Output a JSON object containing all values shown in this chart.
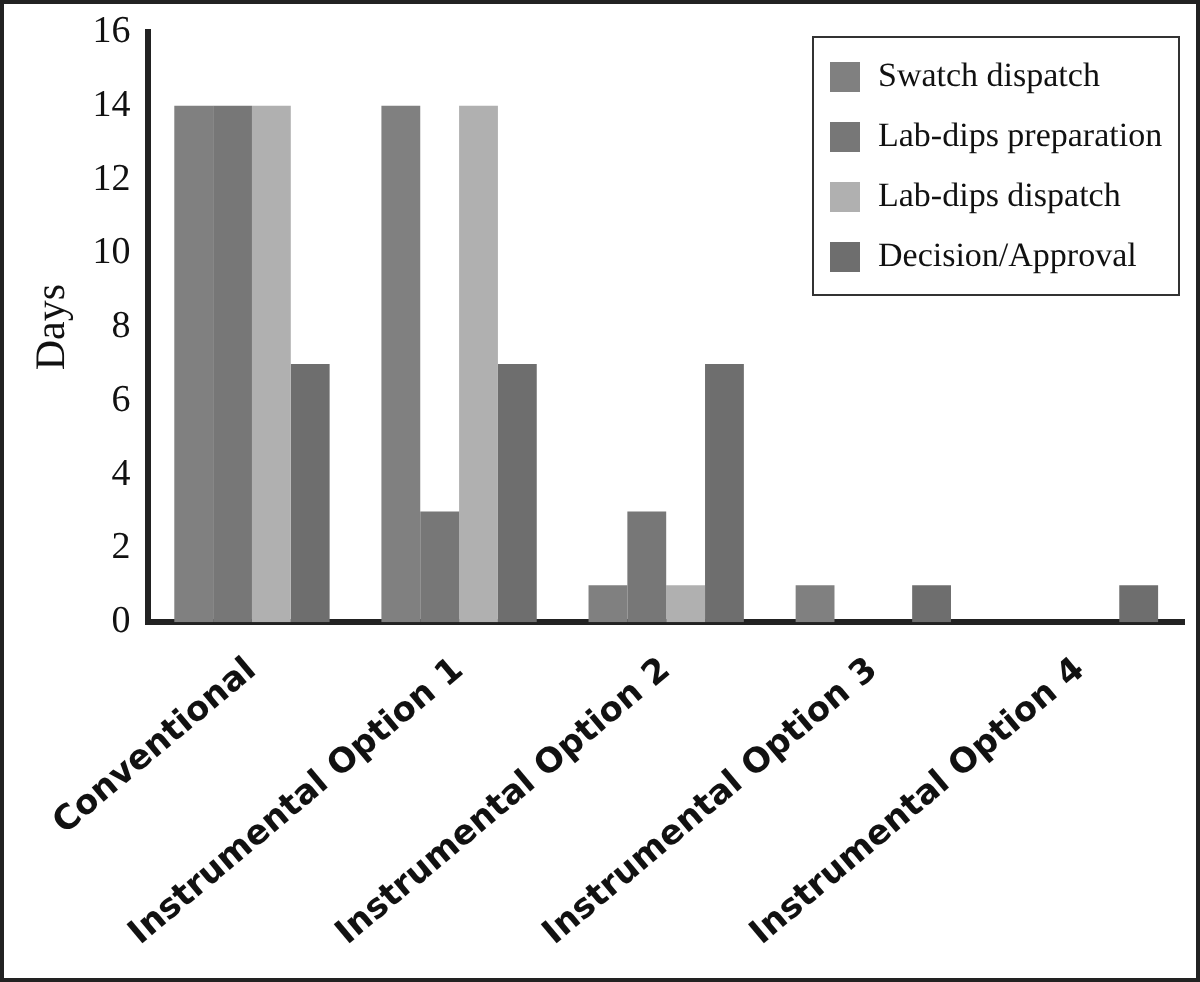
{
  "chart_data": {
    "type": "bar",
    "ylabel": "Days",
    "categories": [
      "Conventional",
      "Instrumental Option 1",
      "Instrumental Option 2",
      "Instrumental Option 3",
      "Instrumental Option 4"
    ],
    "series": [
      {
        "name": "Swatch dispatch",
        "color": "#808080",
        "values": [
          14,
          14,
          1,
          1,
          0
        ]
      },
      {
        "name": "Lab-dips preparation",
        "color": "#777777",
        "values": [
          14,
          3,
          3,
          0,
          0
        ]
      },
      {
        "name": "Lab-dips dispatch",
        "color": "#b0b0b0",
        "values": [
          14,
          14,
          1,
          0,
          0
        ]
      },
      {
        "name": "Decision/Approval",
        "color": "#6e6e6e",
        "values": [
          7,
          7,
          7,
          1,
          1
        ]
      }
    ],
    "ylim": [
      0,
      16
    ],
    "yticks": [
      0,
      2,
      4,
      6,
      8,
      10,
      12,
      14,
      16
    ],
    "grid": false,
    "legend": "top right"
  }
}
